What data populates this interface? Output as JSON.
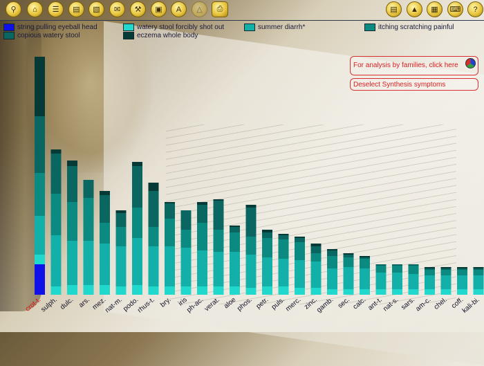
{
  "toolbar": {
    "left_icons": [
      "search-icon",
      "home-icon",
      "columns-icon",
      "document-icon",
      "book-icon",
      "envelope-icon",
      "tools-icon",
      "folder-icon",
      "letter-a-icon",
      "flask-icon",
      "printer-icon"
    ],
    "letter_a": "A",
    "right_icons": [
      "notes-icon",
      "analysis-icon",
      "calendar-icon",
      "keyboard-icon",
      "help-icon"
    ],
    "help_label": "?"
  },
  "legend": [
    {
      "label": "string pulling eyeball head",
      "color": "#1010e8"
    },
    {
      "label": "watery stool forcibly shot out",
      "color": "#20d8cc"
    },
    {
      "label": "summer diarrh*",
      "color": "#12b0a8"
    },
    {
      "label": "itching scratching painful",
      "color": "#0a8a80"
    },
    {
      "label": "copious watery stool",
      "color": "#0a6660"
    },
    {
      "label": "eczema whole body",
      "color": "#063a36"
    }
  ],
  "actions": {
    "analysis_families": "For analysis by families, click here",
    "deselect": "Deselect Synthesis symptoms"
  },
  "chart_data": {
    "type": "bar",
    "stacked": true,
    "categories": [
      "crot-t.",
      "sulph.",
      "dulc.",
      "ars.",
      "mez.",
      "nat-m.",
      "podo.",
      "rhus-t.",
      "bry.",
      "iris",
      "ph-ac.",
      "verat.",
      "aloe",
      "phos.",
      "petr.",
      "puls.",
      "merc.",
      "zinc.",
      "gamb.",
      "sec.",
      "calc.",
      "ant-t.",
      "nat-s.",
      "sars.",
      "am-c.",
      "chel.",
      "coff.",
      "kali-bi."
    ],
    "highlight_category": "crot-t.",
    "highlight_color": "#e01010",
    "series": [
      {
        "name": "string pulling eyeball head",
        "values": [
          1,
          0,
          0,
          0,
          0,
          0,
          0,
          0,
          0,
          0,
          0,
          0,
          0,
          0,
          0,
          0,
          0,
          0,
          0,
          0,
          0,
          0,
          0,
          0,
          0,
          0,
          0,
          0
        ]
      },
      {
        "name": "watery stool forcibly shot out",
        "values": [
          1,
          1,
          1,
          1,
          1,
          1,
          1,
          1,
          1,
          1,
          1,
          1,
          1,
          1,
          1,
          1,
          1,
          1,
          1,
          1,
          1,
          1,
          1,
          1,
          1,
          1,
          1,
          1
        ]
      },
      {
        "name": "summer diarrh*",
        "values": [
          1,
          1,
          1,
          1,
          1,
          1,
          1,
          1,
          1,
          1,
          1,
          1,
          1,
          1,
          1,
          1,
          1,
          1,
          1,
          1,
          1,
          1,
          1,
          1,
          1,
          1,
          1,
          1
        ]
      },
      {
        "name": "itching scratching painful",
        "values": [
          1,
          1,
          1,
          1,
          1,
          1,
          1,
          1,
          1,
          1,
          1,
          1,
          1,
          1,
          1,
          1,
          1,
          1,
          1,
          1,
          1,
          1,
          1,
          1,
          1,
          1,
          1,
          1
        ]
      },
      {
        "name": "copious watery stool",
        "values": [
          1,
          1,
          1,
          1,
          1,
          1,
          1,
          1,
          1,
          1,
          1,
          1,
          1,
          1,
          1,
          1,
          1,
          1,
          1,
          1,
          1,
          1,
          1,
          1,
          1,
          1,
          1,
          1
        ]
      },
      {
        "name": "eczema whole body",
        "values": [
          1,
          1,
          1,
          1,
          1,
          1,
          1,
          1,
          1,
          1,
          1,
          1,
          1,
          1,
          1,
          1,
          1,
          1,
          1,
          1,
          1,
          1,
          1,
          1,
          1,
          1,
          1,
          1
        ]
      }
    ],
    "segment_heights": [
      [
        44,
        14,
        56,
        62,
        82,
        86
      ],
      [
        0,
        12,
        74,
        60,
        58,
        6
      ],
      [
        0,
        14,
        64,
        56,
        52,
        8
      ],
      [
        0,
        14,
        64,
        62,
        26,
        0
      ],
      [
        0,
        14,
        60,
        30,
        40,
        6
      ],
      [
        0,
        12,
        58,
        28,
        20,
        4
      ],
      [
        0,
        14,
        68,
        44,
        60,
        6
      ],
      [
        0,
        12,
        58,
        28,
        52,
        12
      ],
      [
        0,
        12,
        58,
        40,
        22,
        2
      ],
      [
        0,
        12,
        56,
        26,
        28,
        0
      ],
      [
        0,
        12,
        52,
        40,
        26,
        4
      ],
      [
        0,
        12,
        50,
        32,
        42,
        2
      ],
      [
        0,
        12,
        50,
        28,
        8,
        2
      ],
      [
        0,
        10,
        48,
        26,
        42,
        4
      ],
      [
        0,
        12,
        42,
        28,
        8,
        4
      ],
      [
        0,
        12,
        40,
        28,
        6,
        2
      ],
      [
        0,
        10,
        40,
        26,
        6,
        2
      ],
      [
        0,
        10,
        38,
        12,
        10,
        4
      ],
      [
        0,
        8,
        30,
        18,
        8,
        2
      ],
      [
        0,
        8,
        32,
        14,
        4,
        2
      ],
      [
        0,
        8,
        30,
        14,
        2,
        2
      ],
      [
        0,
        8,
        24,
        10,
        2,
        0
      ],
      [
        0,
        8,
        24,
        10,
        2,
        0
      ],
      [
        0,
        8,
        22,
        12,
        2,
        0
      ],
      [
        0,
        8,
        20,
        8,
        2,
        2
      ],
      [
        0,
        8,
        20,
        8,
        2,
        2
      ],
      [
        0,
        8,
        20,
        8,
        2,
        2
      ],
      [
        0,
        8,
        20,
        8,
        2,
        2
      ]
    ]
  }
}
